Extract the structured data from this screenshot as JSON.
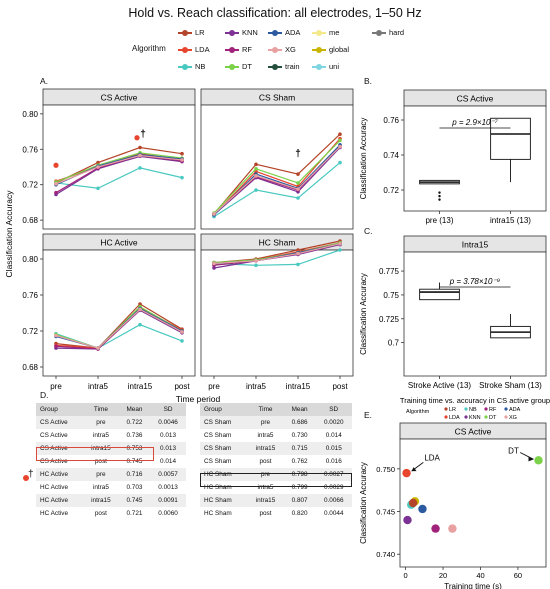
{
  "title": "Hold vs. Reach classification: all electrodes, 1–50 Hz",
  "legend": {
    "title": "Algorithm",
    "items": [
      {
        "name": "LR",
        "color": "#b5452a"
      },
      {
        "name": "KNN",
        "color": "#7b3294"
      },
      {
        "name": "ADA",
        "color": "#2c5aa0"
      },
      {
        "name": "me",
        "color": "#f4e98a"
      },
      {
        "name": "hard",
        "color": "#777777"
      },
      {
        "name": "LDA",
        "color": "#e8452f"
      },
      {
        "name": "RF",
        "color": "#a0227a"
      },
      {
        "name": "XG",
        "color": "#e8a0a0"
      },
      {
        "name": "global",
        "color": "#c9b500"
      },
      {
        "name": "NB",
        "color": "#49c9c0"
      },
      {
        "name": "DT",
        "color": "#7bd148"
      },
      {
        "name": "train",
        "color": "#234e3a"
      },
      {
        "name": "uni",
        "color": "#7fd6e0"
      }
    ]
  },
  "panels": {
    "a_label": "A.",
    "b_label": "B.",
    "c_label": "C.",
    "d_label": "D.",
    "e_label": "E.",
    "a_ylabel": "Classification Accuracy",
    "a_xlabel": "Time period",
    "b_ylabel": "Classification Accuracy",
    "c_ylabel": "Classification Accuracy",
    "e_ylabel": "Classification Accuracy",
    "c_xlabel": "Training time vs. accuracy in CS active group",
    "e_xlabel": "Training time (s)",
    "dagger": "†"
  },
  "chart_data": [
    {
      "type": "line",
      "panel": "A",
      "facets": [
        "CS Active",
        "CS Sham",
        "HC Active",
        "HC Sham"
      ],
      "x": [
        "pre",
        "intra5",
        "intra15",
        "post"
      ],
      "ylim": [
        0.67,
        0.81
      ],
      "yticks": [
        "0.68",
        "0.72",
        "0.76",
        "0.80"
      ],
      "series": [
        {
          "name": "LR",
          "color": "#b5452a",
          "values": {
            "CS Active": [
              0.722,
              0.745,
              0.762,
              0.755
            ],
            "CS Sham": [
              0.687,
              0.743,
              0.732,
              0.777
            ],
            "HC Active": [
              0.706,
              0.701,
              0.75,
              0.722
            ],
            "HC Sham": [
              0.796,
              0.8,
              0.81,
              0.82
            ]
          }
        },
        {
          "name": "LDA",
          "color": "#e8452f",
          "values": {
            "CS Active": [
              0.724,
              0.74,
              0.755,
              0.748
            ],
            "CS Sham": [
              0.686,
              0.735,
              0.718,
              0.772
            ],
            "HC Active": [
              0.704,
              0.701,
              0.746,
              0.721
            ],
            "HC Sham": [
              0.794,
              0.799,
              0.808,
              0.818
            ]
          }
        },
        {
          "name": "NB",
          "color": "#49c9c0",
          "values": {
            "CS Active": [
              0.722,
              0.716,
              0.739,
              0.728
            ],
            "CS Sham": [
              0.684,
              0.714,
              0.705,
              0.745
            ],
            "HC Active": [
              0.717,
              0.701,
              0.727,
              0.709
            ],
            "HC Sham": [
              0.795,
              0.793,
              0.794,
              0.81
            ]
          }
        },
        {
          "name": "KNN",
          "color": "#7b3294",
          "values": {
            "CS Active": [
              0.709,
              0.738,
              0.752,
              0.746
            ],
            "CS Sham": [
              0.686,
              0.728,
              0.712,
              0.762
            ],
            "HC Active": [
              0.701,
              0.7,
              0.743,
              0.718
            ],
            "HC Sham": [
              0.79,
              0.798,
              0.805,
              0.816
            ]
          }
        },
        {
          "name": "RF",
          "color": "#a0227a",
          "values": {
            "CS Active": [
              0.711,
              0.739,
              0.753,
              0.747
            ],
            "CS Sham": [
              0.687,
              0.729,
              0.714,
              0.764
            ],
            "HC Active": [
              0.703,
              0.7,
              0.744,
              0.719
            ],
            "HC Sham": [
              0.793,
              0.798,
              0.806,
              0.817
            ]
          }
        },
        {
          "name": "DT",
          "color": "#7bd148",
          "values": {
            "CS Active": [
              0.723,
              0.742,
              0.756,
              0.75
            ],
            "CS Sham": [
              0.688,
              0.738,
              0.722,
              0.77
            ],
            "HC Active": [
              0.716,
              0.701,
              0.747,
              0.72
            ],
            "HC Sham": [
              0.796,
              0.799,
              0.807,
              0.818
            ]
          }
        },
        {
          "name": "ADA",
          "color": "#2c5aa0",
          "values": {
            "CS Active": [
              0.72,
              0.741,
              0.754,
              0.749
            ],
            "CS Sham": [
              0.686,
              0.732,
              0.716,
              0.765
            ],
            "HC Active": [
              0.714,
              0.701,
              0.745,
              0.72
            ],
            "HC Sham": [
              0.795,
              0.798,
              0.807,
              0.817
            ]
          }
        },
        {
          "name": "XG",
          "color": "#e8a0a0",
          "values": {
            "CS Active": [
              0.721,
              0.74,
              0.753,
              0.748
            ],
            "CS Sham": [
              0.687,
              0.73,
              0.715,
              0.763
            ],
            "HC Active": [
              0.715,
              0.701,
              0.744,
              0.719
            ],
            "HC Sham": [
              0.795,
              0.798,
              0.806,
              0.817
            ]
          }
        }
      ],
      "markers": [
        {
          "facet": "CS Active",
          "x": "pre",
          "y": 0.742,
          "color": "#e8452f"
        },
        {
          "facet": "CS Active",
          "x": "intra15",
          "y": 0.773,
          "color": "#e8452f"
        }
      ],
      "annotations": [
        {
          "facet": "CS Active",
          "x": "intra15",
          "text": "†"
        },
        {
          "facet": "CS Sham",
          "x": "intra15",
          "text": "†"
        }
      ]
    },
    {
      "type": "box",
      "panel": "B",
      "title": "CS Active",
      "categories": [
        "pre (13)",
        "intra15 (13)"
      ],
      "ylim": [
        0.708,
        0.768
      ],
      "yticks": [
        "0.72",
        "0.74",
        "0.76"
      ],
      "boxes": [
        {
          "q1": 0.7235,
          "median": 0.7245,
          "q3": 0.7255,
          "whisker_low": 0.7235,
          "whisker_high": 0.7255,
          "outliers": [
            0.7185,
            0.7165,
            0.7145
          ]
        },
        {
          "q1": 0.7375,
          "median": 0.752,
          "q3": 0.761,
          "whisker_low": 0.7245,
          "whisker_high": 0.761,
          "outliers": []
        }
      ],
      "annotation": "p = 2.9×10⁻⁷"
    },
    {
      "type": "box",
      "panel": "C",
      "title": "Intra15",
      "categories": [
        "Stroke Active (13)",
        "Stroke Sham (13)"
      ],
      "ylim": [
        0.665,
        0.795
      ],
      "yticks": [
        "0.7",
        "0.725",
        "0.75",
        "0.775"
      ],
      "boxes": [
        {
          "q1": 0.745,
          "median": 0.753,
          "q3": 0.756,
          "whisker_low": 0.745,
          "whisker_high": 0.763,
          "outliers": []
        },
        {
          "q1": 0.705,
          "median": 0.711,
          "q3": 0.717,
          "whisker_low": 0.705,
          "whisker_high": 0.73,
          "outliers": []
        }
      ],
      "annotation": "p = 3.78×10⁻⁹"
    },
    {
      "type": "scatter",
      "panel": "E",
      "title": "CS Active",
      "xlim": [
        -3,
        75
      ],
      "ylim": [
        0.7385,
        0.7535
      ],
      "xticks": [
        "0",
        "20",
        "40",
        "60"
      ],
      "yticks": [
        "0.740",
        "0.745",
        "0.750"
      ],
      "legend_title": "Algorithm",
      "legend_items": [
        {
          "name": "LR",
          "color": "#b5452a"
        },
        {
          "name": "NB",
          "color": "#49c9c0"
        },
        {
          "name": "RF",
          "color": "#a0227a"
        },
        {
          "name": "ADA",
          "color": "#2c5aa0"
        },
        {
          "name": "LDA",
          "color": "#e8452f"
        },
        {
          "name": "KNN",
          "color": "#7b3294"
        },
        {
          "name": "DT",
          "color": "#7bd148"
        },
        {
          "name": "XG",
          "color": "#e8a0a0"
        }
      ],
      "points": [
        {
          "name": "LDA",
          "x": 0.5,
          "y": 0.7495,
          "color": "#e8452f"
        },
        {
          "name": "KNN",
          "x": 1.0,
          "y": 0.744,
          "color": "#7b3294"
        },
        {
          "name": "NB",
          "x": 3.0,
          "y": 0.7458,
          "color": "#49c9c0"
        },
        {
          "name": "XG",
          "x": 5.0,
          "y": 0.7462,
          "color": "#c9b500"
        },
        {
          "name": "LR",
          "x": 4.0,
          "y": 0.746,
          "color": "#b5452a"
        },
        {
          "name": "ADA",
          "x": 9.0,
          "y": 0.7453,
          "color": "#2c5aa0"
        },
        {
          "name": "RF",
          "x": 16.0,
          "y": 0.743,
          "color": "#a0227a"
        },
        {
          "name": "XG2",
          "x": 25.0,
          "y": 0.743,
          "color": "#e8a0a0"
        },
        {
          "name": "DT",
          "x": 71.0,
          "y": 0.751,
          "color": "#7bd148"
        }
      ],
      "labels": [
        {
          "text": "LDA",
          "x": 10.0,
          "y": 0.751
        },
        {
          "text": "DT",
          "x": 58.0,
          "y": 0.7518
        }
      ]
    }
  ],
  "table": {
    "headers": [
      "Group",
      "Time",
      "Mean",
      "SD"
    ],
    "left": [
      [
        "CS Active",
        "pre",
        "0.722",
        "0.0046"
      ],
      [
        "CS Active",
        "intra5",
        "0.736",
        "0.013"
      ],
      [
        "CS Active",
        "intra15",
        "0.753",
        "0.013"
      ],
      [
        "CS Active",
        "post",
        "0.745",
        "0.014"
      ],
      [
        "HC Active",
        "pre",
        "0.716",
        "0.0057"
      ],
      [
        "HC Active",
        "intra5",
        "0.703",
        "0.0013"
      ],
      [
        "HC Active",
        "intra15",
        "0.745",
        "0.0091"
      ],
      [
        "HC Active",
        "post",
        "0.721",
        "0.0060"
      ]
    ],
    "right": [
      [
        "CS Sham",
        "pre",
        "0.686",
        "0.0020"
      ],
      [
        "CS Sham",
        "intra5",
        "0.730",
        "0.014"
      ],
      [
        "CS Sham",
        "intra15",
        "0.715",
        "0.015"
      ],
      [
        "CS Sham",
        "post",
        "0.762",
        "0.016"
      ],
      [
        "HC Sham",
        "pre",
        "0.798",
        "0.0027"
      ],
      [
        "HC Sham",
        "intra5",
        "0.799",
        "0.0029"
      ],
      [
        "HC Sham",
        "intra15",
        "0.807",
        "0.0066"
      ],
      [
        "HC Sham",
        "post",
        "0.820",
        "0.0044"
      ]
    ]
  }
}
